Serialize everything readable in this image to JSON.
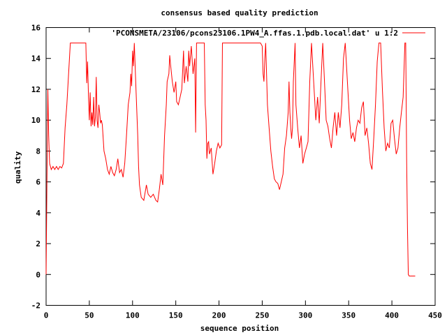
{
  "chart_data": {
    "type": "line",
    "title": "consensus based quality prediction",
    "xlabel": "sequence position",
    "ylabel": "quality",
    "xlim": [
      0,
      450
    ],
    "ylim": [
      -2,
      16
    ],
    "xticks": [
      0,
      50,
      100,
      150,
      200,
      250,
      300,
      350,
      400,
      450
    ],
    "yticks": [
      -2,
      0,
      2,
      4,
      6,
      8,
      10,
      12,
      14,
      16
    ],
    "grid": false,
    "legend": "top-right",
    "series": [
      {
        "name": "'PCONSMETA/23106/pcons23106.1PW4_A.ffas.1.pdb.local.dat' u 1:2",
        "color": "#ff0000",
        "points": [
          [
            0,
            0
          ],
          [
            1,
            6
          ],
          [
            2,
            12
          ],
          [
            3,
            9
          ],
          [
            4,
            7.2
          ],
          [
            6,
            6.8
          ],
          [
            8,
            7
          ],
          [
            10,
            6.8
          ],
          [
            12,
            7
          ],
          [
            14,
            6.8
          ],
          [
            16,
            7
          ],
          [
            18,
            6.9
          ],
          [
            20,
            7.2
          ],
          [
            22,
            9.5
          ],
          [
            24,
            11
          ],
          [
            26,
            13
          ],
          [
            28,
            15
          ],
          [
            46,
            15
          ],
          [
            47,
            12.4
          ],
          [
            48,
            13.8
          ],
          [
            49,
            11.5
          ],
          [
            50,
            10
          ],
          [
            51,
            11.8
          ],
          [
            52,
            9.6
          ],
          [
            53,
            10.5
          ],
          [
            54,
            9.7
          ],
          [
            55,
            11.5
          ],
          [
            56,
            9.6
          ],
          [
            57,
            10.2
          ],
          [
            58,
            12.8
          ],
          [
            59,
            10
          ],
          [
            60,
            9.5
          ],
          [
            61,
            11
          ],
          [
            62,
            10.5
          ],
          [
            63,
            9.8
          ],
          [
            64,
            10
          ],
          [
            65,
            9.7
          ],
          [
            67,
            8
          ],
          [
            69,
            7.5
          ],
          [
            71,
            6.8
          ],
          [
            73,
            6.5
          ],
          [
            75,
            7
          ],
          [
            77,
            6.6
          ],
          [
            79,
            6.4
          ],
          [
            81,
            6.8
          ],
          [
            83,
            7.5
          ],
          [
            85,
            6.6
          ],
          [
            87,
            6.8
          ],
          [
            89,
            6.3
          ],
          [
            91,
            7.2
          ],
          [
            93,
            9
          ],
          [
            95,
            11
          ],
          [
            97,
            11.8
          ],
          [
            98,
            13
          ],
          [
            99,
            12.2
          ],
          [
            100,
            14.5
          ],
          [
            101,
            13.5
          ],
          [
            102,
            15
          ],
          [
            104,
            12
          ],
          [
            106,
            9
          ],
          [
            107,
            7
          ],
          [
            108,
            5.8
          ],
          [
            110,
            5
          ],
          [
            113,
            4.8
          ],
          [
            116,
            5.8
          ],
          [
            118,
            5.2
          ],
          [
            121,
            5
          ],
          [
            124,
            5.2
          ],
          [
            127,
            4.8
          ],
          [
            129,
            4.7
          ],
          [
            131,
            5.5
          ],
          [
            133,
            6.5
          ],
          [
            135,
            5.8
          ],
          [
            137,
            9
          ],
          [
            139,
            11
          ],
          [
            140,
            12.5
          ],
          [
            142,
            13
          ],
          [
            143,
            14.2
          ],
          [
            144,
            13.6
          ],
          [
            146,
            12.5
          ],
          [
            148,
            11.8
          ],
          [
            150,
            12.5
          ],
          [
            151,
            11.2
          ],
          [
            153,
            11
          ],
          [
            155,
            11.5
          ],
          [
            157,
            12
          ],
          [
            159,
            14.5
          ],
          [
            160,
            12.4
          ],
          [
            162,
            13.5
          ],
          [
            164,
            12.5
          ],
          [
            165,
            14.5
          ],
          [
            166,
            13.5
          ],
          [
            168,
            14.8
          ],
          [
            170,
            13
          ],
          [
            172,
            14
          ],
          [
            173,
            9.2
          ],
          [
            174,
            15
          ],
          [
            183,
            15
          ],
          [
            184,
            11
          ],
          [
            185,
            10
          ],
          [
            186,
            7.5
          ],
          [
            187,
            8.5
          ],
          [
            188,
            8.6
          ],
          [
            189,
            7.8
          ],
          [
            191,
            8.2
          ],
          [
            193,
            6.5
          ],
          [
            195,
            7.2
          ],
          [
            197,
            8
          ],
          [
            199,
            8.5
          ],
          [
            201,
            8.2
          ],
          [
            203,
            8.4
          ],
          [
            204,
            15
          ],
          [
            248,
            15
          ],
          [
            250,
            14.8
          ],
          [
            251,
            13
          ],
          [
            252,
            12.5
          ],
          [
            253,
            14
          ],
          [
            254,
            15
          ],
          [
            256,
            11
          ],
          [
            258,
            9.5
          ],
          [
            260,
            8
          ],
          [
            262,
            7
          ],
          [
            264,
            6.2
          ],
          [
            266,
            6
          ],
          [
            268,
            5.9
          ],
          [
            270,
            5.5
          ],
          [
            272,
            6
          ],
          [
            274,
            6.5
          ],
          [
            276,
            8.2
          ],
          [
            278,
            9
          ],
          [
            280,
            10.5
          ],
          [
            281,
            12.5
          ],
          [
            282,
            10.5
          ],
          [
            283,
            9.5
          ],
          [
            284,
            8.8
          ],
          [
            285,
            9.5
          ],
          [
            286,
            12.5
          ],
          [
            288,
            15
          ],
          [
            289,
            11
          ],
          [
            291,
            9.5
          ],
          [
            293,
            8.2
          ],
          [
            295,
            9
          ],
          [
            297,
            7.2
          ],
          [
            299,
            7.8
          ],
          [
            301,
            8.2
          ],
          [
            303,
            8.6
          ],
          [
            305,
            12.5
          ],
          [
            307,
            15
          ],
          [
            310,
            12
          ],
          [
            312,
            10
          ],
          [
            314,
            11.5
          ],
          [
            316,
            9.8
          ],
          [
            318,
            12.5
          ],
          [
            320,
            15
          ],
          [
            322,
            12.5
          ],
          [
            324,
            10
          ],
          [
            326,
            9.6
          ],
          [
            328,
            8.8
          ],
          [
            330,
            8.2
          ],
          [
            332,
            9.5
          ],
          [
            334,
            10.5
          ],
          [
            336,
            9
          ],
          [
            338,
            10.5
          ],
          [
            340,
            9.5
          ],
          [
            342,
            11
          ],
          [
            344,
            14
          ],
          [
            346,
            15
          ],
          [
            349,
            12
          ],
          [
            351,
            10
          ],
          [
            353,
            8.8
          ],
          [
            355,
            9.2
          ],
          [
            357,
            8.6
          ],
          [
            359,
            9.5
          ],
          [
            361,
            10
          ],
          [
            363,
            9.8
          ],
          [
            365,
            10.8
          ],
          [
            367,
            11.2
          ],
          [
            369,
            9
          ],
          [
            371,
            9.5
          ],
          [
            373,
            8.5
          ],
          [
            375,
            7.2
          ],
          [
            377,
            6.8
          ],
          [
            379,
            8.8
          ],
          [
            381,
            11
          ],
          [
            383,
            13.8
          ],
          [
            385,
            15
          ],
          [
            387,
            15
          ],
          [
            389,
            12
          ],
          [
            391,
            9.5
          ],
          [
            393,
            8
          ],
          [
            395,
            8.5
          ],
          [
            397,
            8.2
          ],
          [
            399,
            9.8
          ],
          [
            401,
            10
          ],
          [
            403,
            8.8
          ],
          [
            405,
            7.8
          ],
          [
            407,
            8.2
          ],
          [
            409,
            9.5
          ],
          [
            411,
            10.5
          ],
          [
            413,
            11.5
          ],
          [
            415,
            15
          ],
          [
            416,
            15
          ],
          [
            417,
            7.5
          ],
          [
            418,
            3
          ],
          [
            419,
            0
          ],
          [
            420,
            -0.1
          ],
          [
            427,
            -0.1
          ]
        ]
      }
    ]
  }
}
